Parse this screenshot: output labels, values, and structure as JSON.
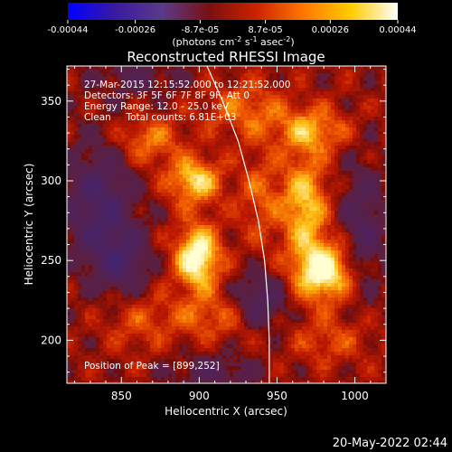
{
  "chart_data": {
    "type": "heatmap",
    "title": "Reconstructed RHESSI Image",
    "xlabel": "Heliocentric X (arcsec)",
    "ylabel": "Heliocentric Y (arcsec)",
    "xlim": [
      815,
      1020
    ],
    "ylim": [
      173,
      372
    ],
    "x_ticks": [
      850,
      900,
      950,
      1000
    ],
    "y_ticks": [
      200,
      250,
      300,
      350
    ],
    "colorbar": {
      "ticks": [
        "-0.00044",
        "-0.00026",
        "-8.7e-05",
        "8.7e-05",
        "0.00026",
        "0.00044"
      ],
      "values": [
        -0.00044,
        -0.00026,
        -8.7e-05,
        8.7e-05,
        0.00026,
        0.00044
      ],
      "label_main": "(photons cm",
      "label_exp1": "-2",
      "label_mid": " s",
      "label_exp2": "-1",
      "label_end": " asec",
      "label_exp3": "-2",
      "label_close": ")",
      "colors": [
        "#0000ff",
        "#3a1aa0",
        "#5a3a8a",
        "#7a1010",
        "#cc2200",
        "#ff7700",
        "#ffcc00",
        "#ffffff"
      ]
    },
    "info_lines": [
      "27-Mar-2015 12:15:52.000 to 12:21:52.000",
      "Detectors: 3F 5F 6F 7F 8F 9F, Att 0",
      "Energy Range: 12.0 - 25.0 keV",
      "Clean     Total counts: 6.81E+03"
    ],
    "peak_label": "Position of Peak = [899,252]",
    "peak": [
      899,
      252
    ],
    "sources": [
      {
        "x": 899,
        "y": 252,
        "amp": 1.0,
        "sx": 10,
        "sy": 14
      },
      {
        "x": 897,
        "y": 300,
        "amp": 0.75,
        "sx": 12,
        "sy": 10
      },
      {
        "x": 980,
        "y": 243,
        "amp": 0.95,
        "sx": 14,
        "sy": 13
      },
      {
        "x": 968,
        "y": 285,
        "amp": 0.7,
        "sx": 10,
        "sy": 22
      },
      {
        "x": 972,
        "y": 332,
        "amp": 0.55,
        "sx": 16,
        "sy": 10
      },
      {
        "x": 868,
        "y": 325,
        "amp": 0.45,
        "sx": 14,
        "sy": 10
      },
      {
        "x": 930,
        "y": 345,
        "amp": 0.4,
        "sx": 18,
        "sy": 12
      },
      {
        "x": 940,
        "y": 290,
        "amp": 0.35,
        "sx": 10,
        "sy": 20
      },
      {
        "x": 905,
        "y": 215,
        "amp": 0.35,
        "sx": 22,
        "sy": 10
      },
      {
        "x": 985,
        "y": 200,
        "amp": 0.3,
        "sx": 18,
        "sy": 10
      },
      {
        "x": 860,
        "y": 210,
        "amp": 0.25,
        "sx": 14,
        "sy": 12
      },
      {
        "x": 835,
        "y": 285,
        "amp": -0.6,
        "sx": 16,
        "sy": 26
      },
      {
        "x": 940,
        "y": 225,
        "amp": -0.55,
        "sx": 12,
        "sy": 12
      },
      {
        "x": 1005,
        "y": 270,
        "amp": -0.45,
        "sx": 10,
        "sy": 30
      },
      {
        "x": 850,
        "y": 250,
        "amp": -0.5,
        "sx": 12,
        "sy": 14
      },
      {
        "x": 910,
        "y": 180,
        "amp": -0.35,
        "sx": 20,
        "sy": 8
      },
      {
        "x": 860,
        "y": 365,
        "amp": -0.3,
        "sx": 20,
        "sy": 8
      }
    ],
    "limb_curve": [
      [
        905,
        372
      ],
      [
        915,
        350
      ],
      [
        925,
        325
      ],
      [
        932,
        300
      ],
      [
        938,
        275
      ],
      [
        942,
        250
      ],
      [
        944,
        225
      ],
      [
        945,
        200
      ],
      [
        945,
        173
      ]
    ]
  },
  "footer_date": "20-May-2022 02:44"
}
